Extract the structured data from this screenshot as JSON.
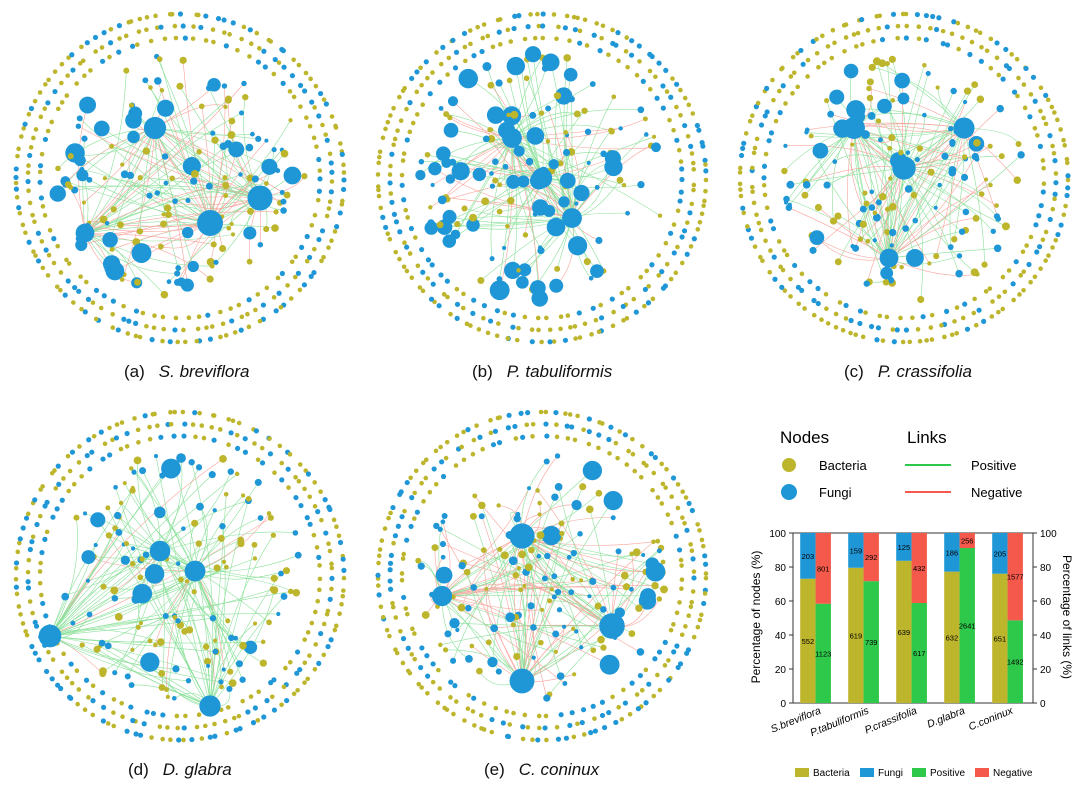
{
  "captions": [
    {
      "letter": "(a)",
      "species": "S. breviflora"
    },
    {
      "letter": "(b)",
      "species": "P. tabuliformis"
    },
    {
      "letter": "(c)",
      "species": "P. crassifolia"
    },
    {
      "letter": "(d)",
      "species": "D. glabra"
    },
    {
      "letter": "(e)",
      "species": "C. coninux"
    }
  ],
  "legend": {
    "nodes_title": "Nodes",
    "links_title": "Links",
    "bacteria": "Bacteria",
    "fungi": "Fungi",
    "positive": "Positive",
    "negative": "Negative"
  },
  "colors": {
    "bacteria": "#bdb52c",
    "fungi": "#1f97d6",
    "positive": "#2ec84a",
    "negative": "#f4594c"
  },
  "chart_data": {
    "type": "bar",
    "categories": [
      "S.breviflora",
      "P.tabuliformis",
      "P.crassifolia",
      "D.glabra",
      "C.coninux"
    ],
    "ylabel_left": "Percentage of nodes (%)",
    "ylabel_right": "Percentage of links (%)",
    "ylim": [
      0,
      100
    ],
    "yticks": [
      0,
      20,
      40,
      60,
      80,
      100
    ],
    "nodes": {
      "bacteria": [
        552,
        619,
        639,
        632,
        651
      ],
      "fungi": [
        203,
        159,
        125,
        186,
        205
      ]
    },
    "links": {
      "positive": [
        1123,
        739,
        617,
        2641,
        1492
      ],
      "negative": [
        801,
        292,
        432,
        256,
        1577
      ]
    },
    "legend_labels": [
      "Bacteria",
      "Fungi",
      "Positive",
      "Negative"
    ]
  }
}
